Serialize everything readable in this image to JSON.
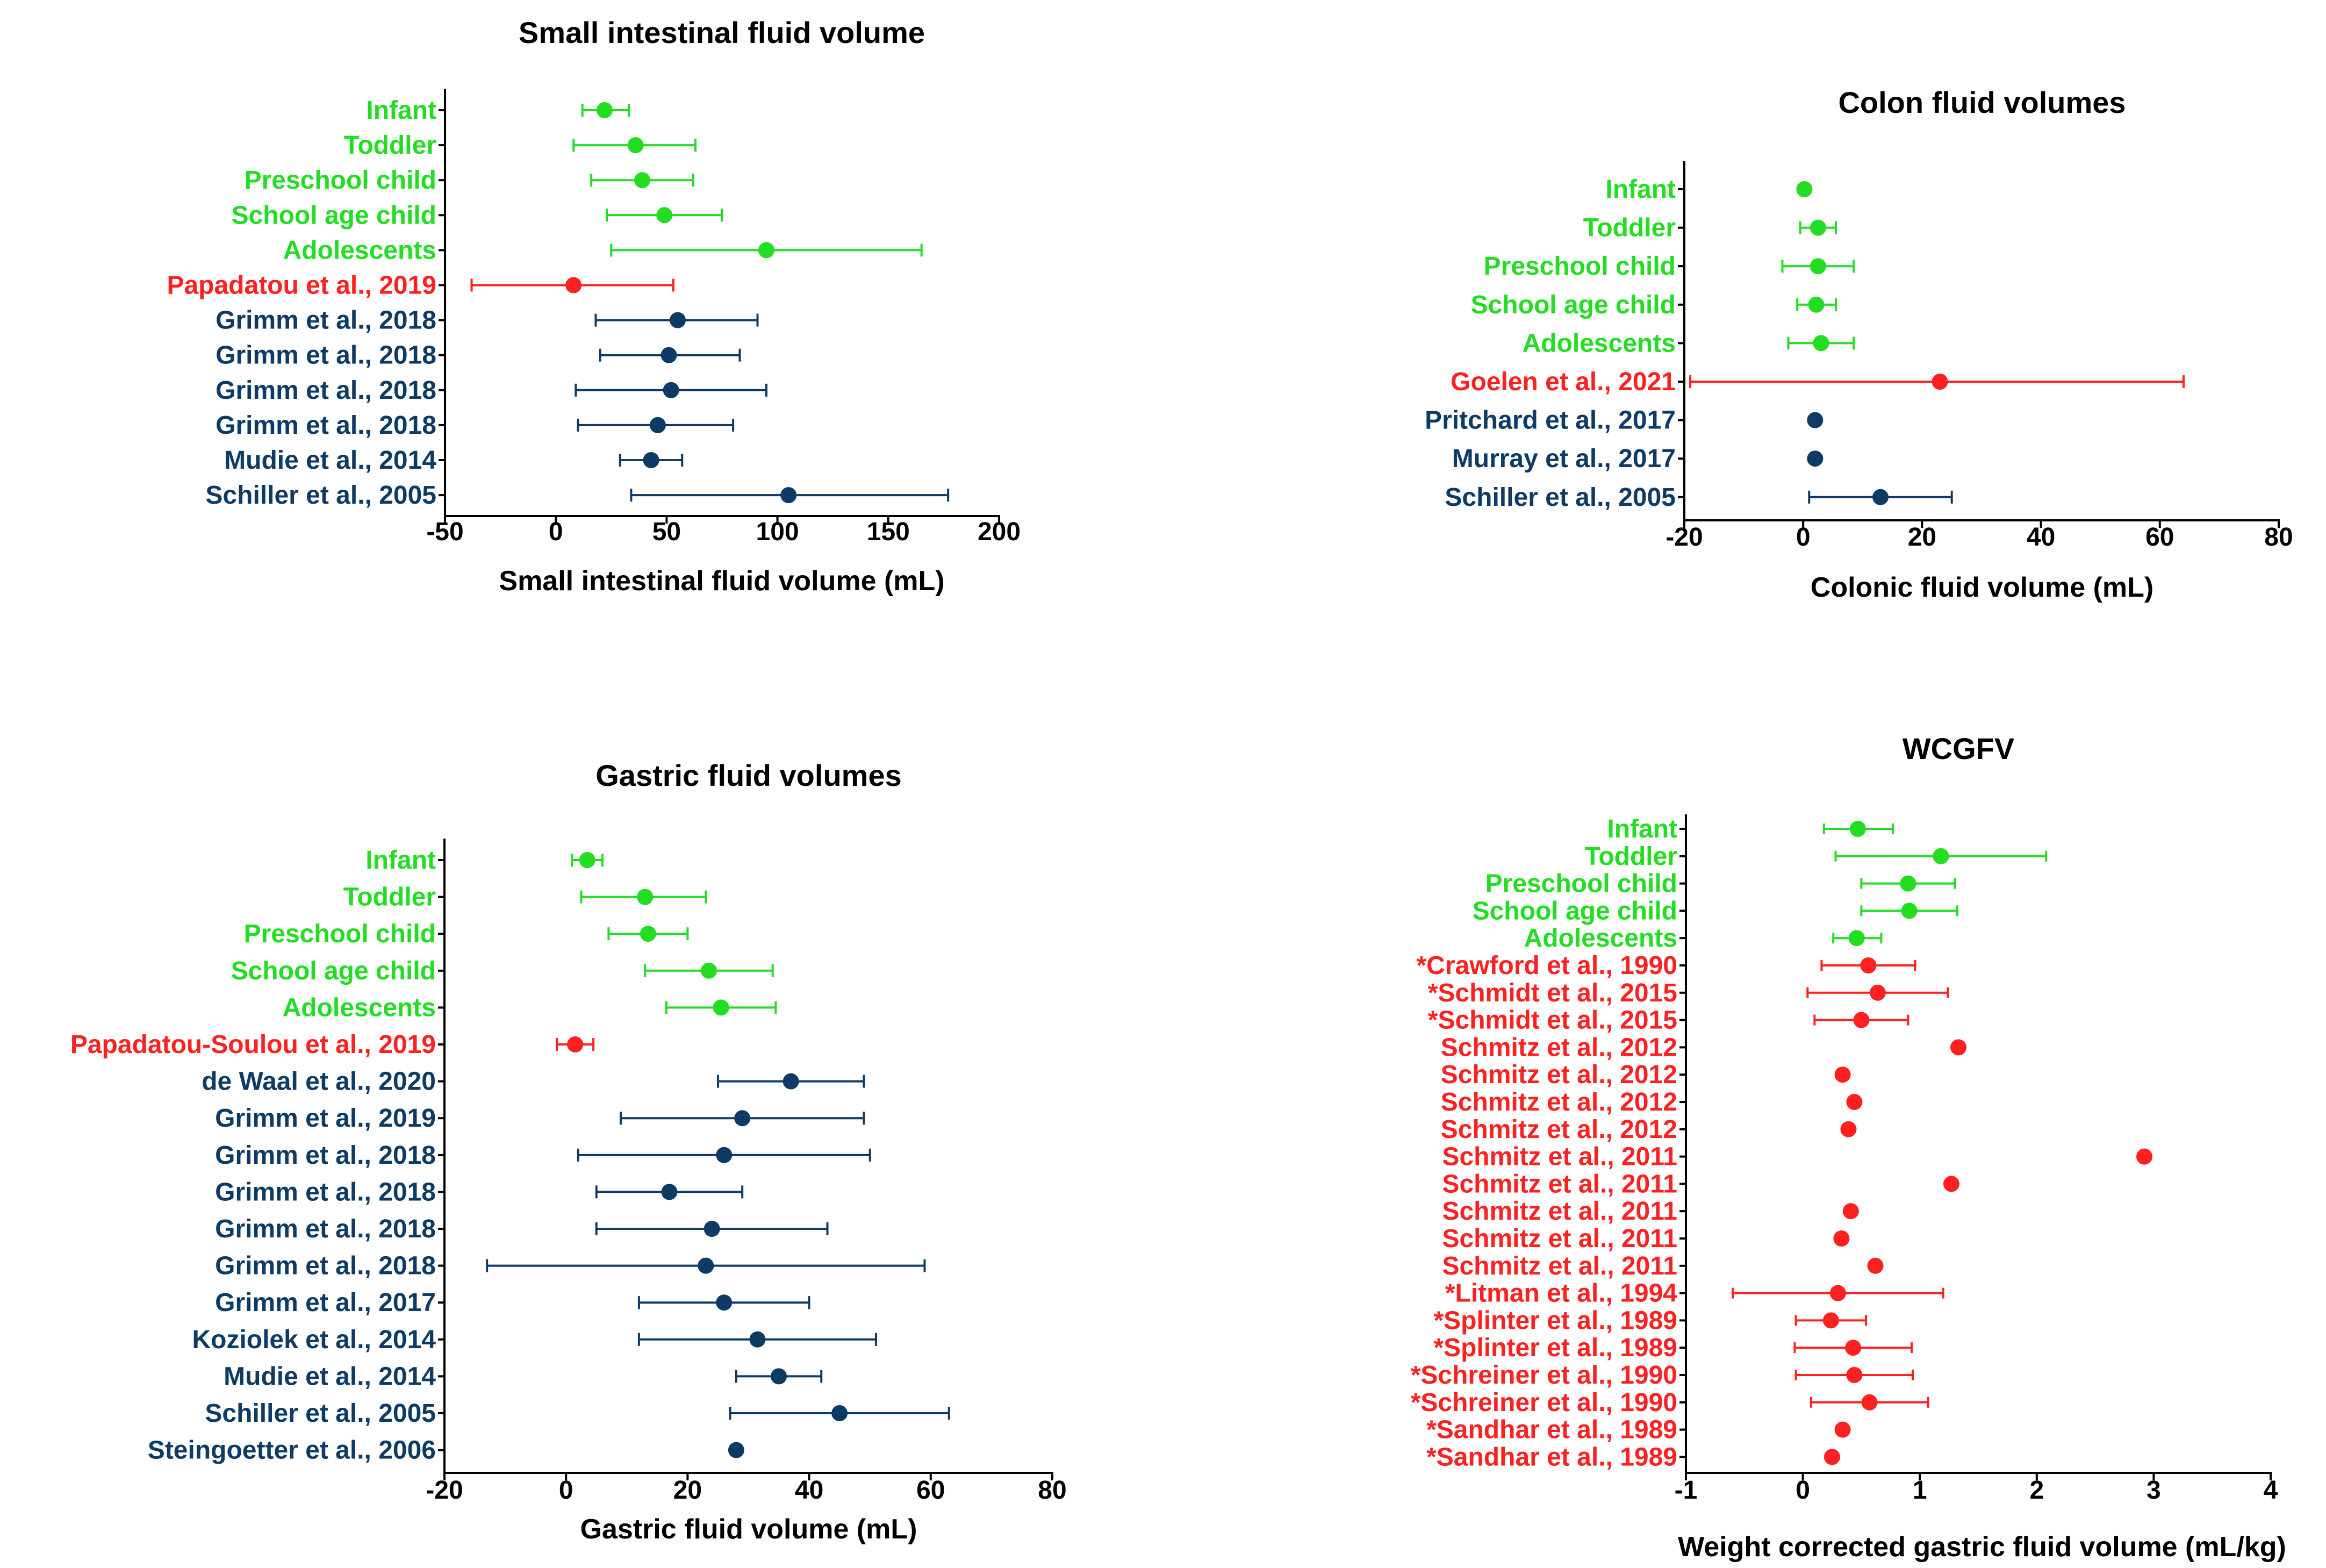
{
  "colors": {
    "pediatric": "#22dd22",
    "study_red": "#ff2020",
    "adult": "#0d3b66"
  },
  "chart_data": [
    {
      "type": "forest",
      "id": "small",
      "title": "Small intestinal fluid volume",
      "xlabel": "Small intestinal fluid volume (mL)",
      "xlim": [
        -50,
        200
      ],
      "xticks": [
        -50,
        0,
        50,
        100,
        150,
        200
      ],
      "rows": [
        {
          "label": "Infant",
          "group": "pediatric",
          "mean": 22,
          "lo": 12,
          "hi": 33
        },
        {
          "label": "Toddler",
          "group": "pediatric",
          "mean": 36,
          "lo": 8,
          "hi": 63
        },
        {
          "label": "Preschool child",
          "group": "pediatric",
          "mean": 39,
          "lo": 16,
          "hi": 62
        },
        {
          "label": "School age child",
          "group": "pediatric",
          "mean": 49,
          "lo": 23,
          "hi": 75
        },
        {
          "label": "Adolescents",
          "group": "pediatric",
          "mean": 95,
          "lo": 25,
          "hi": 165
        },
        {
          "label": "Papadatou et al., 2019",
          "group": "study_red",
          "mean": 8,
          "lo": -38,
          "hi": 53
        },
        {
          "label": "Grimm et al., 2018",
          "group": "adult",
          "mean": 55,
          "lo": 18,
          "hi": 91
        },
        {
          "label": "Grimm et al., 2018",
          "group": "adult",
          "mean": 51,
          "lo": 20,
          "hi": 83
        },
        {
          "label": "Grimm et al., 2018",
          "group": "adult",
          "mean": 52,
          "lo": 9,
          "hi": 95
        },
        {
          "label": "Grimm et al., 2018",
          "group": "adult",
          "mean": 46,
          "lo": 10,
          "hi": 80
        },
        {
          "label": "Mudie et al., 2014",
          "group": "adult",
          "mean": 43,
          "lo": 29,
          "hi": 57
        },
        {
          "label": "Schiller et al., 2005",
          "group": "adult",
          "mean": 105,
          "lo": 34,
          "hi": 177
        }
      ]
    },
    {
      "type": "forest",
      "id": "colon",
      "title": "Colon fluid volumes",
      "xlabel": "Colonic fluid volume (mL)",
      "xlim": [
        -20,
        80
      ],
      "xticks": [
        -20,
        0,
        20,
        40,
        60,
        80
      ],
      "rows": [
        {
          "label": "Infant",
          "group": "pediatric",
          "mean": 0.2,
          "lo": null,
          "hi": null
        },
        {
          "label": "Toddler",
          "group": "pediatric",
          "mean": 2.5,
          "lo": -0.5,
          "hi": 5.5
        },
        {
          "label": "Preschool child",
          "group": "pediatric",
          "mean": 2.5,
          "lo": -3.5,
          "hi": 8.5
        },
        {
          "label": "School age child",
          "group": "pediatric",
          "mean": 2.2,
          "lo": -1.0,
          "hi": 5.5
        },
        {
          "label": "Adolescents",
          "group": "pediatric",
          "mean": 3.0,
          "lo": -2.5,
          "hi": 8.5
        },
        {
          "label": "Goelen et al., 2021",
          "group": "study_red",
          "mean": 23,
          "lo": -19,
          "hi": 64
        },
        {
          "label": "Pritchard et al., 2017",
          "group": "adult",
          "mean": 2.0,
          "lo": null,
          "hi": null
        },
        {
          "label": "Murray et al., 2017",
          "group": "adult",
          "mean": 2.0,
          "lo": null,
          "hi": null
        },
        {
          "label": "Schiller et al., 2005",
          "group": "adult",
          "mean": 13,
          "lo": 1,
          "hi": 25
        }
      ]
    },
    {
      "type": "forest",
      "id": "gastric",
      "title": "Gastric fluid volumes",
      "xlabel": "Gastric fluid volume (mL)",
      "xlim": [
        -20,
        80
      ],
      "xticks": [
        -20,
        0,
        20,
        40,
        60,
        80
      ],
      "rows": [
        {
          "label": "Infant",
          "group": "pediatric",
          "mean": 3.5,
          "lo": 1,
          "hi": 6
        },
        {
          "label": "Toddler",
          "group": "pediatric",
          "mean": 13,
          "lo": 2.5,
          "hi": 23
        },
        {
          "label": "Preschool child",
          "group": "pediatric",
          "mean": 13.5,
          "lo": 7,
          "hi": 20
        },
        {
          "label": "School age child",
          "group": "pediatric",
          "mean": 23.5,
          "lo": 13,
          "hi": 34
        },
        {
          "label": "Adolescents",
          "group": "pediatric",
          "mean": 25.5,
          "lo": 16.5,
          "hi": 34.5
        },
        {
          "label": "Papadatou-Soulou et al., 2019",
          "group": "study_red",
          "mean": 1.5,
          "lo": -1.5,
          "hi": 4.5
        },
        {
          "label": "de Waal et al., 2020",
          "group": "adult",
          "mean": 37,
          "lo": 25,
          "hi": 49
        },
        {
          "label": "Grimm et al., 2019",
          "group": "adult",
          "mean": 29,
          "lo": 9,
          "hi": 49
        },
        {
          "label": "Grimm et al., 2018",
          "group": "adult",
          "mean": 26,
          "lo": 2,
          "hi": 50
        },
        {
          "label": "Grimm et al., 2018",
          "group": "adult",
          "mean": 17,
          "lo": 5,
          "hi": 29
        },
        {
          "label": "Grimm et al., 2018",
          "group": "adult",
          "mean": 24,
          "lo": 5,
          "hi": 43
        },
        {
          "label": "Grimm et al., 2018",
          "group": "adult",
          "mean": 23,
          "lo": -13,
          "hi": 59
        },
        {
          "label": "Grimm et al., 2017",
          "group": "adult",
          "mean": 26,
          "lo": 12,
          "hi": 40
        },
        {
          "label": "Koziolek et al., 2014",
          "group": "adult",
          "mean": 31.5,
          "lo": 12,
          "hi": 51
        },
        {
          "label": "Mudie et al., 2014",
          "group": "adult",
          "mean": 35,
          "lo": 28,
          "hi": 42
        },
        {
          "label": "Schiller et al., 2005",
          "group": "adult",
          "mean": 45,
          "lo": 27,
          "hi": 63
        },
        {
          "label": "Steingoetter et al., 2006",
          "group": "adult",
          "mean": 28,
          "lo": null,
          "hi": null
        }
      ]
    },
    {
      "type": "forest",
      "id": "wcgfv",
      "title": "WCGFV",
      "xlabel": "Weight corrected gastric fluid volume (mL/kg)",
      "xlim": [
        -1,
        4
      ],
      "xticks": [
        -1,
        0,
        1,
        2,
        3,
        4
      ],
      "rows": [
        {
          "label": "Infant",
          "group": "pediatric",
          "mean": 0.47,
          "lo": 0.18,
          "hi": 0.77
        },
        {
          "label": "Toddler",
          "group": "pediatric",
          "mean": 1.18,
          "lo": 0.28,
          "hi": 2.08
        },
        {
          "label": "Preschool child",
          "group": "pediatric",
          "mean": 0.9,
          "lo": 0.5,
          "hi": 1.3
        },
        {
          "label": "School age child",
          "group": "pediatric",
          "mean": 0.91,
          "lo": 0.5,
          "hi": 1.32
        },
        {
          "label": "Adolescents",
          "group": "pediatric",
          "mean": 0.46,
          "lo": 0.26,
          "hi": 0.67
        },
        {
          "label": "*Crawford et al., 1990",
          "group": "study_red",
          "mean": 0.56,
          "lo": 0.16,
          "hi": 0.96
        },
        {
          "label": "*Schmidt et al., 2015",
          "group": "study_red",
          "mean": 0.64,
          "lo": 0.04,
          "hi": 1.24
        },
        {
          "label": "*Schmidt et al., 2015",
          "group": "study_red",
          "mean": 0.5,
          "lo": 0.1,
          "hi": 0.9
        },
        {
          "label": "Schmitz et al., 2012",
          "group": "study_red",
          "mean": 1.33,
          "lo": null,
          "hi": null
        },
        {
          "label": "Schmitz et al., 2012",
          "group": "study_red",
          "mean": 0.34,
          "lo": null,
          "hi": null
        },
        {
          "label": "Schmitz et al., 2012",
          "group": "study_red",
          "mean": 0.44,
          "lo": null,
          "hi": null
        },
        {
          "label": "Schmitz et al., 2012",
          "group": "study_red",
          "mean": 0.39,
          "lo": null,
          "hi": null
        },
        {
          "label": "Schmitz et al., 2011",
          "group": "study_red",
          "mean": 2.92,
          "lo": null,
          "hi": null
        },
        {
          "label": "Schmitz et al., 2011",
          "group": "study_red",
          "mean": 1.27,
          "lo": null,
          "hi": null
        },
        {
          "label": "Schmitz et al., 2011",
          "group": "study_red",
          "mean": 0.41,
          "lo": null,
          "hi": null
        },
        {
          "label": "Schmitz et al., 2011",
          "group": "study_red",
          "mean": 0.33,
          "lo": null,
          "hi": null
        },
        {
          "label": "Schmitz et al., 2011",
          "group": "study_red",
          "mean": 0.62,
          "lo": null,
          "hi": null
        },
        {
          "label": "*Litman et al., 1994",
          "group": "study_red",
          "mean": 0.3,
          "lo": -0.6,
          "hi": 1.2
        },
        {
          "label": "*Splinter et al., 1989",
          "group": "study_red",
          "mean": 0.24,
          "lo": -0.06,
          "hi": 0.54
        },
        {
          "label": "*Splinter et al., 1989",
          "group": "study_red",
          "mean": 0.43,
          "lo": -0.07,
          "hi": 0.93
        },
        {
          "label": "*Schreiner et al., 1990",
          "group": "study_red",
          "mean": 0.44,
          "lo": -0.06,
          "hi": 0.94
        },
        {
          "label": "*Schreiner et al., 1990",
          "group": "study_red",
          "mean": 0.57,
          "lo": 0.07,
          "hi": 1.07
        },
        {
          "label": "*Sandhar et al., 1989",
          "group": "study_red",
          "mean": 0.34,
          "lo": null,
          "hi": null
        },
        {
          "label": "*Sandhar et al., 1989",
          "group": "study_red",
          "mean": 0.25,
          "lo": null,
          "hi": null
        }
      ]
    }
  ]
}
